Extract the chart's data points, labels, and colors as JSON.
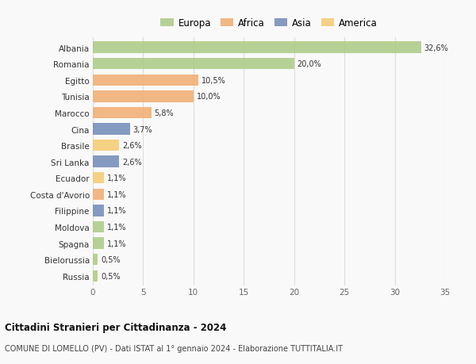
{
  "countries": [
    "Albania",
    "Romania",
    "Egitto",
    "Tunisia",
    "Marocco",
    "Cina",
    "Brasile",
    "Sri Lanka",
    "Ecuador",
    "Costa d'Avorio",
    "Filippine",
    "Moldova",
    "Spagna",
    "Bielorussia",
    "Russia"
  ],
  "values": [
    32.6,
    20.0,
    10.5,
    10.0,
    5.8,
    3.7,
    2.6,
    2.6,
    1.1,
    1.1,
    1.1,
    1.1,
    1.1,
    0.5,
    0.5
  ],
  "labels": [
    "32,6%",
    "20,0%",
    "10,5%",
    "10,0%",
    "5,8%",
    "3,7%",
    "2,6%",
    "2,6%",
    "1,1%",
    "1,1%",
    "1,1%",
    "1,1%",
    "1,1%",
    "0,5%",
    "0,5%"
  ],
  "colors": [
    "#a8c97f",
    "#a8c97f",
    "#f0a96a",
    "#f0a96a",
    "#f0a96a",
    "#6b85b5",
    "#f5c96a",
    "#6b85b5",
    "#f5c96a",
    "#f0a96a",
    "#6b85b5",
    "#a8c97f",
    "#a8c97f",
    "#a8c97f",
    "#a8c97f"
  ],
  "continents": [
    "Europa",
    "Africa",
    "Asia",
    "America"
  ],
  "continent_colors": [
    "#a8c97f",
    "#f0a96a",
    "#6b85b5",
    "#f5c96a"
  ],
  "title": "Cittadini Stranieri per Cittadinanza - 2024",
  "subtitle": "COMUNE DI LOMELLO (PV) - Dati ISTAT al 1° gennaio 2024 - Elaborazione TUTTITALIA.IT",
  "xlim": [
    0,
    35
  ],
  "xticks": [
    0,
    5,
    10,
    15,
    20,
    25,
    30,
    35
  ],
  "background_color": "#f9f9f9",
  "grid_color": "#dddddd",
  "bar_height": 0.7
}
